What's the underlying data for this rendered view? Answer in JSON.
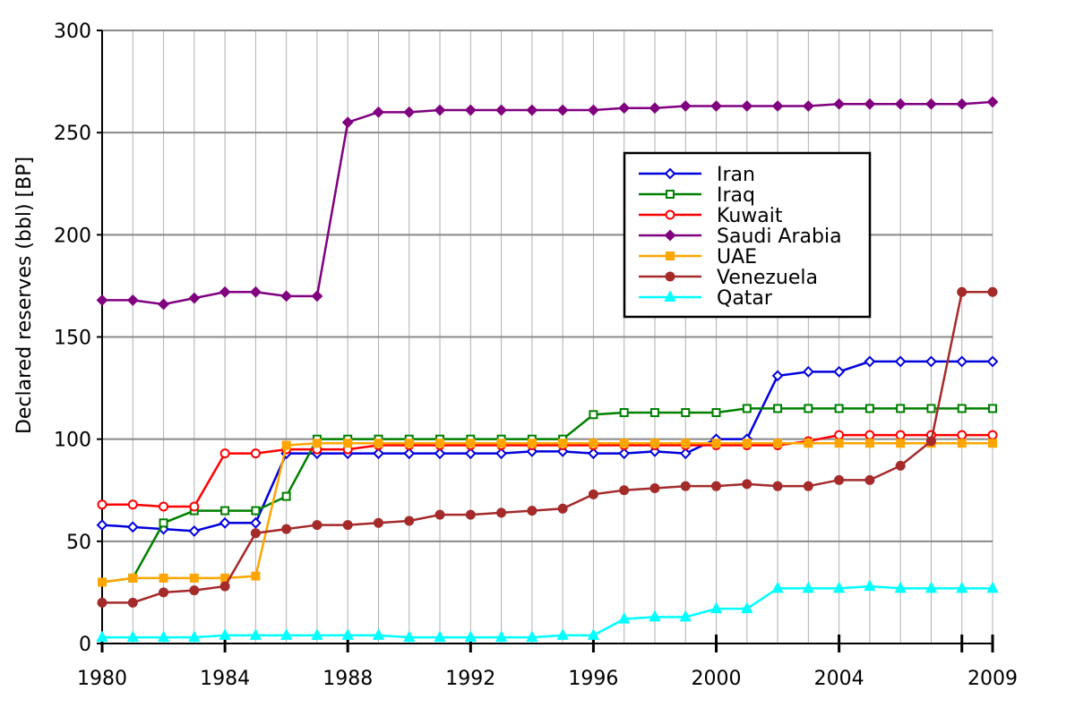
{
  "chart_data": {
    "type": "line",
    "ylabel": "Declared reserves (bbl) [BP]",
    "xlabel": "",
    "xlim": [
      1980,
      2009
    ],
    "ylim": [
      0,
      300
    ],
    "x_ticks": [
      1980,
      1984,
      1988,
      1992,
      1996,
      2000,
      2004,
      2009
    ],
    "y_ticks": [
      0,
      50,
      100,
      150,
      200,
      250,
      300
    ],
    "grid": true,
    "legend_position": "upper-right",
    "x": [
      1980,
      1981,
      1982,
      1983,
      1984,
      1985,
      1986,
      1987,
      1988,
      1989,
      1990,
      1991,
      1992,
      1993,
      1994,
      1995,
      1996,
      1997,
      1998,
      1999,
      2000,
      2001,
      2002,
      2003,
      2004,
      2005,
      2006,
      2007,
      2008,
      2009
    ],
    "series": [
      {
        "name": "Iran",
        "color": "#0000dd",
        "marker": "diamond-open",
        "values": [
          58,
          57,
          56,
          55,
          59,
          59,
          93,
          93,
          93,
          93,
          93,
          93,
          93,
          93,
          94,
          94,
          93,
          93,
          94,
          93,
          100,
          100,
          131,
          133,
          133,
          138,
          138,
          138,
          138,
          138
        ]
      },
      {
        "name": "Iraq",
        "color": "#008000",
        "marker": "square-open",
        "values": [
          30,
          32,
          59,
          65,
          65,
          65,
          72,
          100,
          100,
          100,
          100,
          100,
          100,
          100,
          100,
          100,
          112,
          113,
          113,
          113,
          113,
          115,
          115,
          115,
          115,
          115,
          115,
          115,
          115,
          115
        ]
      },
      {
        "name": "Kuwait",
        "color": "#ff0000",
        "marker": "circle-open",
        "values": [
          68,
          68,
          67,
          67,
          93,
          93,
          95,
          95,
          95,
          97,
          97,
          97,
          97,
          97,
          97,
          97,
          97,
          97,
          97,
          97,
          97,
          97,
          97,
          99,
          102,
          102,
          102,
          102,
          102,
          102
        ]
      },
      {
        "name": "Saudi Arabia",
        "color": "#800080",
        "marker": "diamond-filled",
        "values": [
          168,
          168,
          166,
          169,
          172,
          172,
          170,
          170,
          255,
          260,
          260,
          261,
          261,
          261,
          261,
          261,
          261,
          262,
          262,
          263,
          263,
          263,
          263,
          263,
          264,
          264,
          264,
          264,
          264,
          265
        ]
      },
      {
        "name": "UAE",
        "color": "#ffa500",
        "marker": "square-filled",
        "values": [
          30,
          32,
          32,
          32,
          32,
          33,
          97,
          98,
          98,
          98,
          98,
          98,
          98,
          98,
          98,
          98,
          98,
          98,
          98,
          98,
          98,
          98,
          98,
          98,
          98,
          98,
          98,
          98,
          98,
          98
        ]
      },
      {
        "name": "Venezuela",
        "color": "#a52a2a",
        "marker": "circle-filled",
        "values": [
          20,
          20,
          25,
          26,
          28,
          54,
          56,
          58,
          58,
          59,
          60,
          63,
          63,
          64,
          65,
          66,
          73,
          75,
          76,
          77,
          77,
          78,
          77,
          77,
          80,
          80,
          87,
          99,
          172,
          172
        ]
      },
      {
        "name": "Qatar",
        "color": "#00ffff",
        "marker": "triangle-filled",
        "values": [
          3,
          3,
          3,
          3,
          4,
          4,
          4,
          4,
          4,
          4,
          3,
          3,
          3,
          3,
          3,
          4,
          4,
          12,
          13,
          13,
          17,
          17,
          27,
          27,
          27,
          28,
          27,
          27,
          27,
          27
        ]
      }
    ]
  }
}
